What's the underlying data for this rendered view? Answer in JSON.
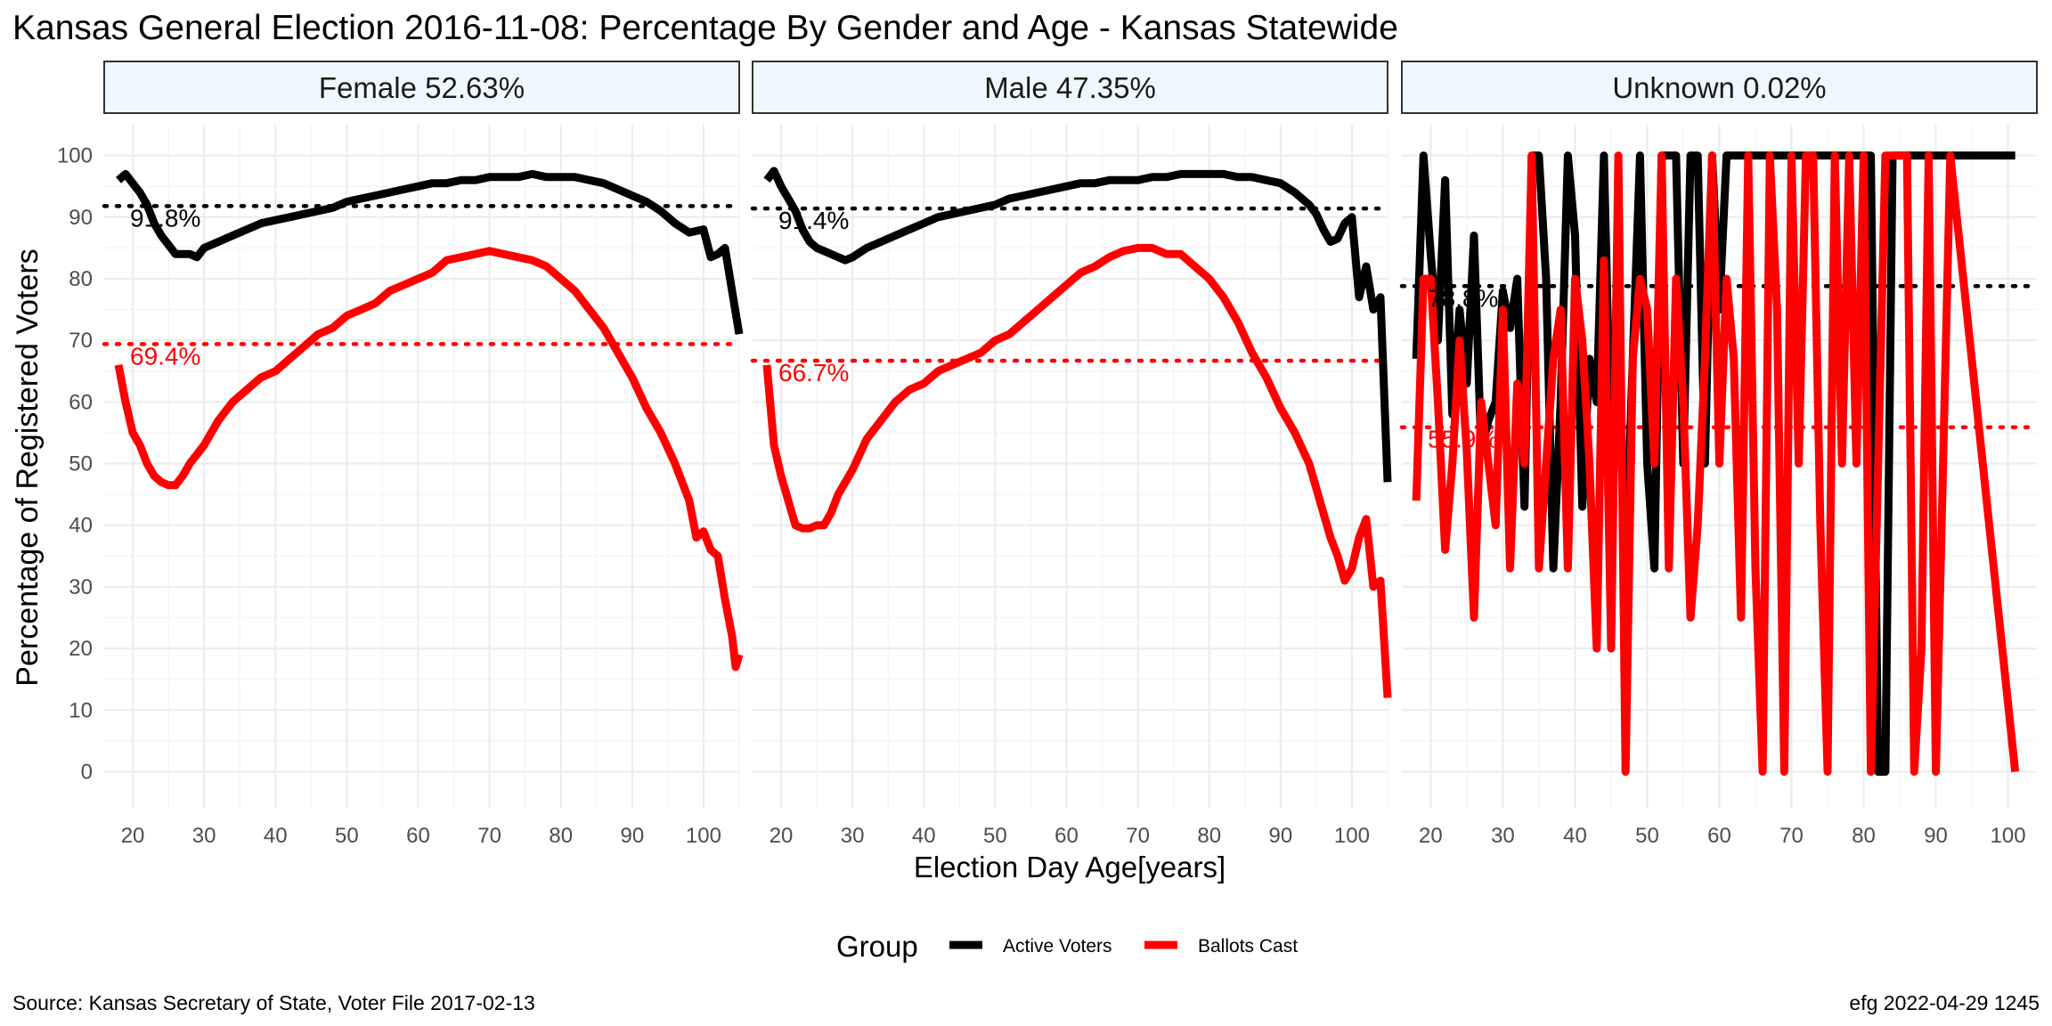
{
  "chart_data": {
    "type": "line",
    "title": "Kansas General Election 2016-11-08:  Percentage By Gender and Age - Kansas Statewide",
    "xlabel": "Election Day Age[years]",
    "ylabel": "Percentage of Registered Voters",
    "caption_left": "Source:  Kansas Secretary of State, Voter File  2017-02-13",
    "caption_right": "efg 2022-04-29 1245",
    "legend_title": "Group",
    "legend_position": "bottom",
    "grid": true,
    "xlim": [
      16,
      105
    ],
    "ylim": [
      -6,
      105
    ],
    "x_ticks": [
      20,
      30,
      40,
      50,
      60,
      70,
      80,
      90,
      100
    ],
    "y_ticks": [
      0,
      10,
      20,
      30,
      40,
      50,
      60,
      70,
      80,
      90,
      100
    ],
    "colors": {
      "active": "#000000",
      "ballots": "#ff0000",
      "strip_fill": "#f0f8ff"
    },
    "series_names": [
      "Active Voters",
      "Ballots Cast"
    ],
    "panels": [
      {
        "label": "Female 52.63%",
        "xlim": [
          16,
          105
        ],
        "series": [
          {
            "name": "Active Voters",
            "color": "#000000",
            "ref_value": 91.8,
            "ref_label": "91.8%",
            "x": [
              18,
              19,
              20,
              21,
              22,
              23,
              24,
              25,
              26,
              27,
              28,
              29,
              30,
              32,
              34,
              36,
              38,
              40,
              42,
              44,
              46,
              48,
              50,
              52,
              54,
              56,
              58,
              60,
              62,
              64,
              66,
              68,
              70,
              72,
              74,
              76,
              78,
              80,
              82,
              84,
              86,
              88,
              90,
              92,
              94,
              96,
              98,
              100,
              101,
              102,
              103,
              104,
              105
            ],
            "y": [
              96,
              97,
              95.5,
              94,
              92,
              89,
              87,
              85.5,
              84,
              84,
              84,
              83.5,
              85,
              86,
              87,
              88,
              89,
              89.5,
              90,
              90.5,
              91,
              91.5,
              92.5,
              93,
              93.5,
              94,
              94.5,
              95,
              95.5,
              95.5,
              96,
              96,
              96.5,
              96.5,
              96.5,
              97,
              96.5,
              96.5,
              96.5,
              96,
              95.5,
              94.5,
              93.5,
              92.5,
              91,
              89,
              87.5,
              88,
              83.5,
              84,
              85,
              78,
              71
            ]
          },
          {
            "name": "Ballots Cast",
            "color": "#ff0000",
            "ref_value": 69.4,
            "ref_label": "69.4%",
            "x": [
              18,
              19,
              20,
              21,
              22,
              23,
              24,
              25,
              26,
              27,
              28,
              30,
              32,
              34,
              36,
              38,
              40,
              42,
              44,
              46,
              48,
              50,
              52,
              54,
              56,
              58,
              60,
              62,
              64,
              66,
              68,
              70,
              72,
              74,
              76,
              78,
              80,
              82,
              84,
              86,
              88,
              90,
              92,
              94,
              96,
              97,
              98,
              99,
              100,
              101,
              102,
              103,
              104,
              104.5,
              105
            ],
            "y": [
              66,
              60,
              55,
              53,
              50,
              48,
              47,
              46.5,
              46.5,
              48,
              50,
              53,
              57,
              60,
              62,
              64,
              65,
              67,
              69,
              71,
              72,
              74,
              75,
              76,
              78,
              79,
              80,
              81,
              83,
              83.5,
              84,
              84.5,
              84,
              83.5,
              83,
              82,
              80,
              78,
              75,
              72,
              68,
              64,
              59,
              55,
              50,
              47,
              44,
              38,
              39,
              36,
              35,
              28,
              22,
              17,
              19
            ]
          }
        ]
      },
      {
        "label": "Male 47.35%",
        "xlim": [
          16,
          105
        ],
        "series": [
          {
            "name": "Active Voters",
            "color": "#000000",
            "ref_value": 91.4,
            "ref_label": "91.4%",
            "x": [
              18,
              19,
              20,
              21,
              22,
              23,
              24,
              25,
              26,
              27,
              28,
              29,
              30,
              32,
              34,
              36,
              38,
              40,
              42,
              44,
              46,
              48,
              50,
              52,
              54,
              56,
              58,
              60,
              62,
              64,
              66,
              68,
              70,
              72,
              74,
              76,
              78,
              80,
              82,
              84,
              86,
              88,
              90,
              92,
              94,
              95,
              96,
              97,
              98,
              99,
              100,
              101,
              102,
              103,
              104,
              105
            ],
            "y": [
              96,
              97.5,
              95,
              93,
              91,
              88,
              86,
              85,
              84.5,
              84,
              83.5,
              83,
              83.5,
              85,
              86,
              87,
              88,
              89,
              90,
              90.5,
              91,
              91.5,
              92,
              93,
              93.5,
              94,
              94.5,
              95,
              95.5,
              95.5,
              96,
              96,
              96,
              96.5,
              96.5,
              97,
              97,
              97,
              97,
              96.5,
              96.5,
              96,
              95.5,
              94,
              92,
              90.5,
              88,
              86,
              86.5,
              89,
              90,
              77,
              82,
              75,
              77,
              47
            ]
          },
          {
            "name": "Ballots Cast",
            "color": "#ff0000",
            "ref_value": 66.7,
            "ref_label": "66.7%",
            "x": [
              18,
              19,
              20,
              21,
              22,
              23,
              24,
              25,
              26,
              27,
              28,
              30,
              32,
              34,
              36,
              38,
              40,
              42,
              44,
              46,
              48,
              50,
              52,
              54,
              56,
              58,
              60,
              62,
              64,
              66,
              68,
              70,
              72,
              74,
              76,
              78,
              80,
              82,
              84,
              86,
              88,
              90,
              92,
              94,
              96,
              97,
              98,
              99,
              100,
              101,
              102,
              103,
              104,
              105
            ],
            "y": [
              66,
              53,
              48,
              44,
              40,
              39.5,
              39.5,
              40,
              40,
              42,
              45,
              49,
              54,
              57,
              60,
              62,
              63,
              65,
              66,
              67,
              68,
              70,
              71,
              73,
              75,
              77,
              79,
              81,
              82,
              83.5,
              84.5,
              85,
              85,
              84,
              84,
              82,
              80,
              77,
              73,
              68,
              64,
              59,
              55,
              50,
              42,
              38,
              35,
              31,
              33,
              38,
              41,
              30,
              31,
              12
            ]
          }
        ]
      },
      {
        "label": "Unknown 0.02%",
        "xlim": [
          16,
          104
        ],
        "series": [
          {
            "name": "Active Voters",
            "color": "#000000",
            "ref_value": 78.8,
            "ref_label": "78.8%",
            "x": [
              18,
              19,
              20,
              21,
              22,
              23,
              24,
              25,
              26,
              27,
              28,
              29,
              30,
              31,
              32,
              33,
              34,
              35,
              36,
              37,
              38,
              39,
              40,
              41,
              42,
              43,
              44,
              45,
              46,
              47,
              48,
              49,
              50,
              51,
              52,
              53,
              54,
              55,
              56,
              57,
              58,
              59,
              60,
              61,
              62,
              63,
              64,
              66,
              70,
              75,
              80,
              81,
              82,
              83,
              84,
              86,
              90,
              95,
              100,
              101
            ],
            "y": [
              67,
              100,
              84,
              70,
              96,
              58,
              75,
              63,
              87,
              52,
              57,
              60,
              78,
              72,
              80,
              43,
              100,
              100,
              80,
              33,
              60,
              100,
              87,
              43,
              67,
              60,
              100,
              50,
              67,
              33,
              67,
              100,
              50,
              33,
              100,
              100,
              100,
              50,
              100,
              100,
              50,
              100,
              75,
              100,
              100,
              100,
              100,
              100,
              100,
              100,
              100,
              100,
              0,
              0,
              100,
              100,
              100,
              100,
              100,
              100
            ]
          },
          {
            "name": "Ballots Cast",
            "color": "#ff0000",
            "ref_value": 55.9,
            "ref_label": "55.9%",
            "x": [
              18,
              19,
              20,
              21,
              22,
              23,
              24,
              25,
              26,
              27,
              28,
              29,
              30,
              31,
              32,
              33,
              34,
              35,
              36,
              37,
              38,
              39,
              40,
              41,
              42,
              43,
              44,
              45,
              46,
              47,
              48,
              49,
              50,
              51,
              52,
              53,
              54,
              55,
              56,
              57,
              58,
              59,
              60,
              61,
              62,
              63,
              64,
              65,
              66,
              67,
              68,
              69,
              70,
              71,
              72,
              73,
              74,
              75,
              76,
              77,
              78,
              79,
              80,
              81,
              82,
              83,
              84,
              85,
              86,
              87,
              88,
              89,
              90,
              91,
              92,
              101
            ],
            "y": [
              44,
              80,
              80,
              60,
              36,
              50,
              70,
              52,
              25,
              60,
              50,
              40,
              75,
              33,
              63,
              50,
              100,
              33,
              50,
              67,
              75,
              33,
              80,
              70,
              50,
              20,
              83,
              20,
              100,
              0,
              67,
              80,
              75,
              50,
              100,
              33,
              80,
              60,
              25,
              40,
              67,
              100,
              50,
              80,
              67,
              25,
              100,
              33,
              0,
              100,
              75,
              0,
              100,
              50,
              100,
              100,
              40,
              0,
              100,
              50,
              100,
              50,
              100,
              0,
              50,
              100,
              100,
              100,
              100,
              0,
              20,
              100,
              0,
              50,
              100,
              0
            ]
          }
        ]
      }
    ]
  }
}
